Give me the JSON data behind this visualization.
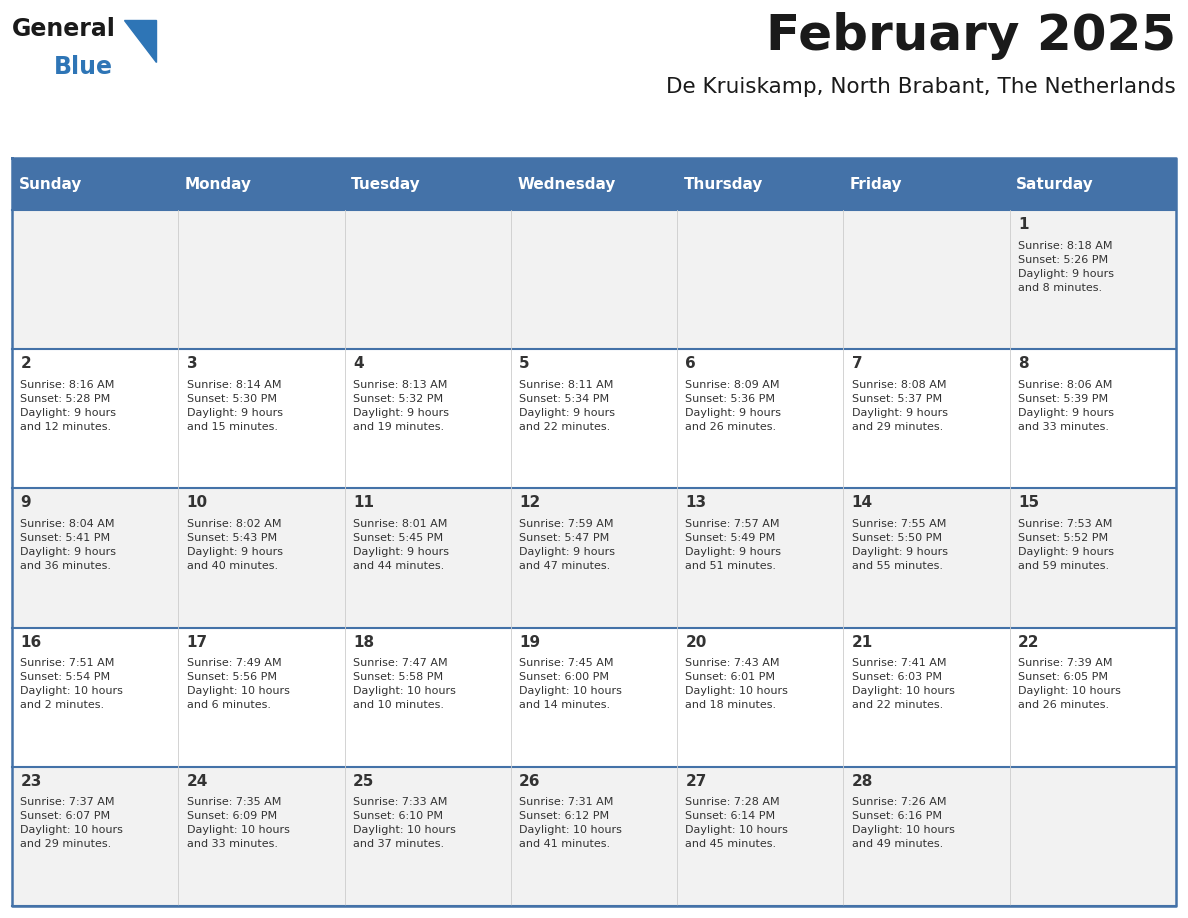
{
  "title": "February 2025",
  "subtitle": "De Kruiskamp, North Brabant, The Netherlands",
  "header_color": "#4472a8",
  "header_text_color": "#ffffff",
  "days_of_week": [
    "Sunday",
    "Monday",
    "Tuesday",
    "Wednesday",
    "Thursday",
    "Friday",
    "Saturday"
  ],
  "bg_color": "#ffffff",
  "cell_bg_even": "#f2f2f2",
  "cell_bg_odd": "#ffffff",
  "row_line_color": "#4472a8",
  "title_color": "#1a1a1a",
  "subtitle_color": "#1a1a1a",
  "day_num_color": "#333333",
  "cell_text_color": "#333333",
  "logo_general_color": "#1a1a1a",
  "logo_blue_color": "#2e75b6",
  "weeks": [
    [
      {
        "day": "",
        "info": ""
      },
      {
        "day": "",
        "info": ""
      },
      {
        "day": "",
        "info": ""
      },
      {
        "day": "",
        "info": ""
      },
      {
        "day": "",
        "info": ""
      },
      {
        "day": "",
        "info": ""
      },
      {
        "day": "1",
        "info": "Sunrise: 8:18 AM\nSunset: 5:26 PM\nDaylight: 9 hours\nand 8 minutes."
      }
    ],
    [
      {
        "day": "2",
        "info": "Sunrise: 8:16 AM\nSunset: 5:28 PM\nDaylight: 9 hours\nand 12 minutes."
      },
      {
        "day": "3",
        "info": "Sunrise: 8:14 AM\nSunset: 5:30 PM\nDaylight: 9 hours\nand 15 minutes."
      },
      {
        "day": "4",
        "info": "Sunrise: 8:13 AM\nSunset: 5:32 PM\nDaylight: 9 hours\nand 19 minutes."
      },
      {
        "day": "5",
        "info": "Sunrise: 8:11 AM\nSunset: 5:34 PM\nDaylight: 9 hours\nand 22 minutes."
      },
      {
        "day": "6",
        "info": "Sunrise: 8:09 AM\nSunset: 5:36 PM\nDaylight: 9 hours\nand 26 minutes."
      },
      {
        "day": "7",
        "info": "Sunrise: 8:08 AM\nSunset: 5:37 PM\nDaylight: 9 hours\nand 29 minutes."
      },
      {
        "day": "8",
        "info": "Sunrise: 8:06 AM\nSunset: 5:39 PM\nDaylight: 9 hours\nand 33 minutes."
      }
    ],
    [
      {
        "day": "9",
        "info": "Sunrise: 8:04 AM\nSunset: 5:41 PM\nDaylight: 9 hours\nand 36 minutes."
      },
      {
        "day": "10",
        "info": "Sunrise: 8:02 AM\nSunset: 5:43 PM\nDaylight: 9 hours\nand 40 minutes."
      },
      {
        "day": "11",
        "info": "Sunrise: 8:01 AM\nSunset: 5:45 PM\nDaylight: 9 hours\nand 44 minutes."
      },
      {
        "day": "12",
        "info": "Sunrise: 7:59 AM\nSunset: 5:47 PM\nDaylight: 9 hours\nand 47 minutes."
      },
      {
        "day": "13",
        "info": "Sunrise: 7:57 AM\nSunset: 5:49 PM\nDaylight: 9 hours\nand 51 minutes."
      },
      {
        "day": "14",
        "info": "Sunrise: 7:55 AM\nSunset: 5:50 PM\nDaylight: 9 hours\nand 55 minutes."
      },
      {
        "day": "15",
        "info": "Sunrise: 7:53 AM\nSunset: 5:52 PM\nDaylight: 9 hours\nand 59 minutes."
      }
    ],
    [
      {
        "day": "16",
        "info": "Sunrise: 7:51 AM\nSunset: 5:54 PM\nDaylight: 10 hours\nand 2 minutes."
      },
      {
        "day": "17",
        "info": "Sunrise: 7:49 AM\nSunset: 5:56 PM\nDaylight: 10 hours\nand 6 minutes."
      },
      {
        "day": "18",
        "info": "Sunrise: 7:47 AM\nSunset: 5:58 PM\nDaylight: 10 hours\nand 10 minutes."
      },
      {
        "day": "19",
        "info": "Sunrise: 7:45 AM\nSunset: 6:00 PM\nDaylight: 10 hours\nand 14 minutes."
      },
      {
        "day": "20",
        "info": "Sunrise: 7:43 AM\nSunset: 6:01 PM\nDaylight: 10 hours\nand 18 minutes."
      },
      {
        "day": "21",
        "info": "Sunrise: 7:41 AM\nSunset: 6:03 PM\nDaylight: 10 hours\nand 22 minutes."
      },
      {
        "day": "22",
        "info": "Sunrise: 7:39 AM\nSunset: 6:05 PM\nDaylight: 10 hours\nand 26 minutes."
      }
    ],
    [
      {
        "day": "23",
        "info": "Sunrise: 7:37 AM\nSunset: 6:07 PM\nDaylight: 10 hours\nand 29 minutes."
      },
      {
        "day": "24",
        "info": "Sunrise: 7:35 AM\nSunset: 6:09 PM\nDaylight: 10 hours\nand 33 minutes."
      },
      {
        "day": "25",
        "info": "Sunrise: 7:33 AM\nSunset: 6:10 PM\nDaylight: 10 hours\nand 37 minutes."
      },
      {
        "day": "26",
        "info": "Sunrise: 7:31 AM\nSunset: 6:12 PM\nDaylight: 10 hours\nand 41 minutes."
      },
      {
        "day": "27",
        "info": "Sunrise: 7:28 AM\nSunset: 6:14 PM\nDaylight: 10 hours\nand 45 minutes."
      },
      {
        "day": "28",
        "info": "Sunrise: 7:26 AM\nSunset: 6:16 PM\nDaylight: 10 hours\nand 49 minutes."
      },
      {
        "day": "",
        "info": ""
      }
    ]
  ]
}
